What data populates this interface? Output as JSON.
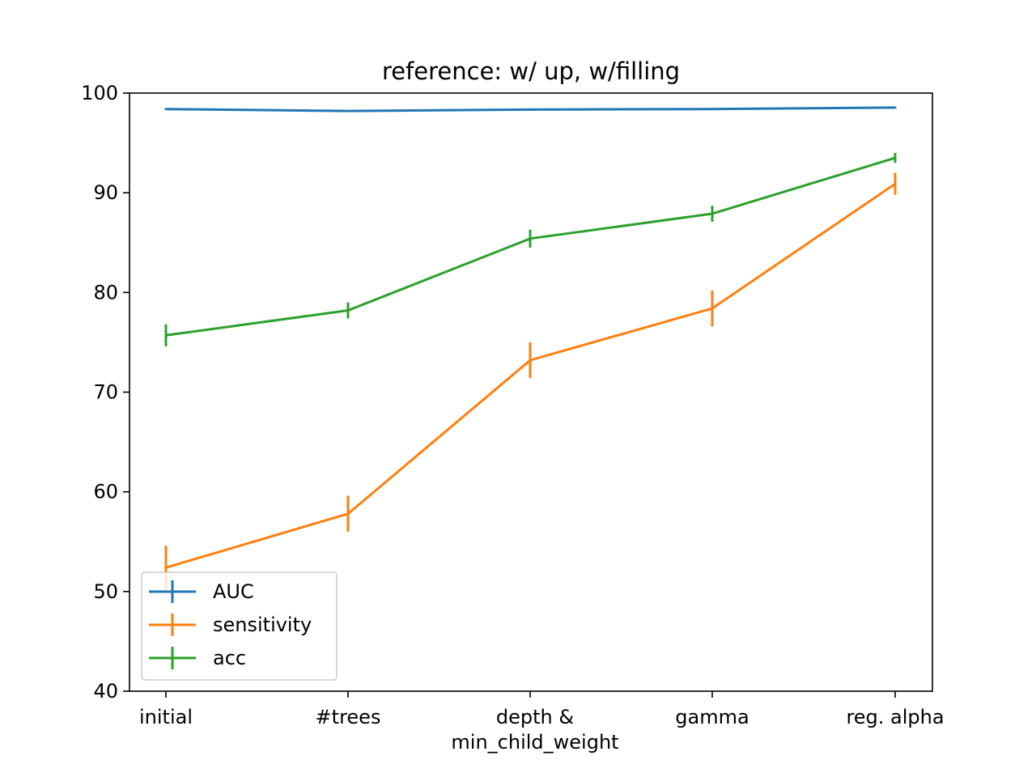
{
  "chart_data": {
    "type": "line",
    "title": "reference: w/ up, w/filling",
    "xlabel": "",
    "ylabel": "",
    "categories": [
      [
        "initial"
      ],
      [
        "#trees"
      ],
      [
        "depth &",
        "min_child_weight"
      ],
      [
        "gamma"
      ],
      [
        "reg. alpha"
      ]
    ],
    "ylim": [
      40,
      100
    ],
    "yticks": [
      40,
      50,
      60,
      70,
      80,
      90,
      100
    ],
    "grid": false,
    "legend_position": "lower-left",
    "series": [
      {
        "name": "AUC",
        "color": "#1f77b4",
        "values": [
          98.4,
          98.2,
          98.35,
          98.4,
          98.55
        ],
        "errors": [
          0.1,
          0.1,
          0.1,
          0.1,
          0.1
        ]
      },
      {
        "name": "sensitivity",
        "color": "#ff7f0e",
        "values": [
          52.4,
          57.8,
          73.2,
          78.4,
          90.9
        ],
        "errors": [
          2.2,
          1.8,
          1.8,
          1.8,
          1.1
        ]
      },
      {
        "name": "acc",
        "color": "#2ca02c",
        "values": [
          75.7,
          78.2,
          85.4,
          87.9,
          93.5
        ],
        "errors": [
          1.1,
          0.8,
          0.9,
          0.8,
          0.5
        ]
      }
    ]
  }
}
